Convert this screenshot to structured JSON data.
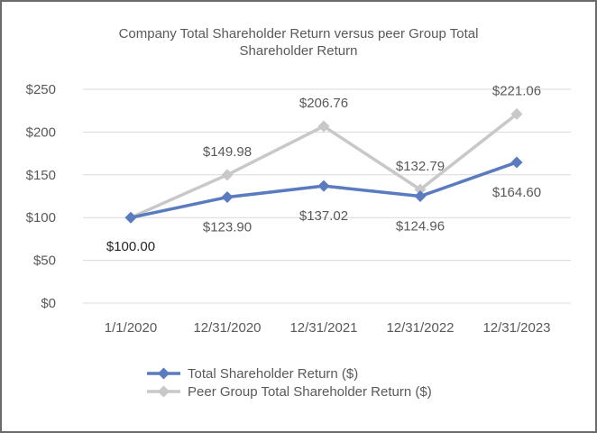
{
  "chart_data": {
    "type": "line",
    "title_lines": [
      "Company Total Shareholder Return versus peer Group Total",
      "Shareholder Return"
    ],
    "categories": [
      "1/1/2020",
      "12/31/2020",
      "12/31/2021",
      "12/31/2022",
      "12/31/2023"
    ],
    "ylim": [
      0,
      250
    ],
    "yticks": [
      0,
      50,
      100,
      150,
      200,
      250
    ],
    "ytick_labels": [
      "$0",
      "$50",
      "$100",
      "$150",
      "$200",
      "$250"
    ],
    "grid": true,
    "legend_placement": "bottom",
    "series": [
      {
        "name": "Total Shareholder Return ($)",
        "color": "#5a7bbf",
        "marker": "diamond",
        "values": [
          100.0,
          123.9,
          137.02,
          124.96,
          164.6
        ],
        "labels": [
          "$100.00",
          "$123.90",
          "$137.02",
          "$124.96",
          "$164.60"
        ]
      },
      {
        "name": "Peer Group Total Shareholder Return ($)",
        "color": "#c8c8c8",
        "marker": "diamond",
        "values": [
          100.0,
          149.98,
          206.76,
          132.79,
          221.06
        ],
        "labels": [
          "",
          "$149.98",
          "$206.76",
          "$132.79",
          "$221.06"
        ]
      }
    ]
  }
}
